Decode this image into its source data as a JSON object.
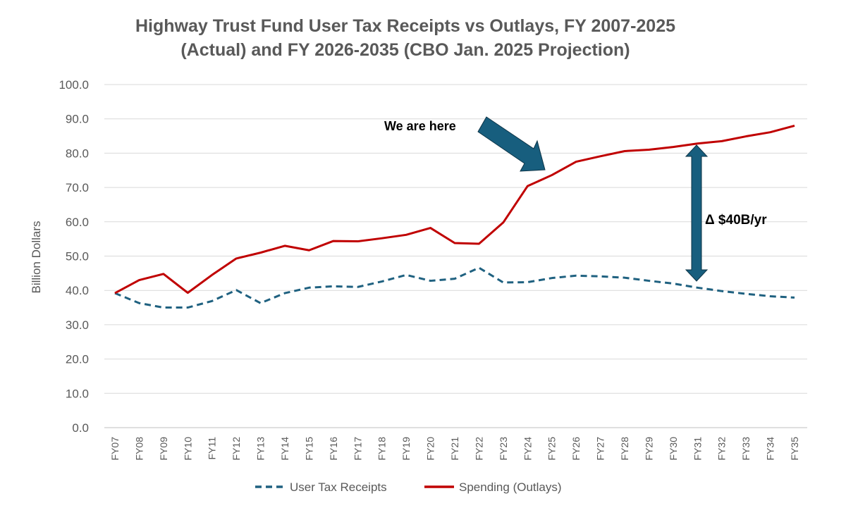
{
  "chart_data": {
    "type": "line",
    "title_line1": "Highway Trust Fund User Tax Receipts vs Outlays, FY 2007-2025",
    "title_line2": "(Actual) and FY 2026-2035 (CBO Jan. 2025 Projection)",
    "xlabel": "",
    "ylabel": "Billion Dollars",
    "ylim": [
      0,
      100
    ],
    "yticks": [
      "0.0",
      "10.0",
      "20.0",
      "30.0",
      "40.0",
      "50.0",
      "60.0",
      "70.0",
      "80.0",
      "90.0",
      "100.0"
    ],
    "grid": true,
    "legend_position": "bottom",
    "categories": [
      "FY07",
      "FY08",
      "FY09",
      "FY10",
      "FY11",
      "FY12",
      "FY13",
      "FY14",
      "FY15",
      "FY16",
      "FY17",
      "FY18",
      "FY19",
      "FY20",
      "FY21",
      "FY22",
      "FY23",
      "FY24",
      "FY25",
      "FY26",
      "FY27",
      "FY28",
      "FY29",
      "FY30",
      "FY31",
      "FY32",
      "FY33",
      "FY34",
      "FY35"
    ],
    "series": [
      {
        "name": "User Tax Receipts",
        "color": "#1f6180",
        "style": "dashed",
        "values": [
          39.2,
          36.3,
          35.0,
          35.0,
          36.9,
          40.1,
          36.3,
          39.2,
          40.8,
          41.2,
          41.0,
          42.6,
          44.5,
          42.8,
          43.4,
          46.6,
          42.3,
          42.4,
          43.6,
          44.3,
          44.1,
          43.7,
          42.8,
          42.0,
          40.8,
          39.8,
          39.0,
          38.3,
          37.9
        ]
      },
      {
        "name": "Spending (Outlays)",
        "color": "#c00000",
        "style": "solid",
        "values": [
          39.2,
          43.0,
          44.8,
          39.3,
          44.5,
          49.3,
          51.0,
          53.0,
          51.7,
          54.4,
          54.3,
          55.2,
          56.2,
          58.2,
          53.8,
          53.6,
          59.8,
          70.4,
          73.6,
          77.5,
          79.1,
          80.6,
          81.0,
          81.8,
          82.8,
          83.5,
          84.9,
          86.1,
          88.0
        ]
      }
    ],
    "annotations": {
      "we_are_here": "We are here",
      "gap": "Δ $40B/yr",
      "arrow_color": "#175e7e"
    }
  }
}
